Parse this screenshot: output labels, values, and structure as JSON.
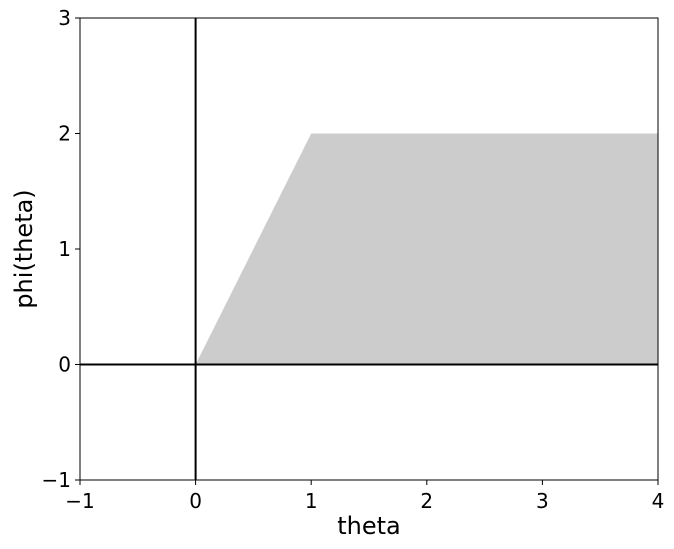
{
  "chart_data": {
    "type": "area",
    "title": "",
    "xlabel": "theta",
    "ylabel": "phi(theta)",
    "xlim": [
      -1,
      4
    ],
    "ylim": [
      -1,
      3
    ],
    "xticks": [
      -1,
      0,
      1,
      2,
      3,
      4
    ],
    "yticks": [
      -1,
      0,
      1,
      2,
      3
    ],
    "xtick_labels": [
      "−1",
      "0",
      "1",
      "2",
      "3",
      "4"
    ],
    "ytick_labels": [
      "−1",
      "0",
      "1",
      "2",
      "3"
    ],
    "grid": false,
    "legend": "none",
    "reference_lines": {
      "x": 0,
      "y": 0,
      "color": "#000000"
    },
    "series": [
      {
        "x": [
          0,
          1,
          4
        ],
        "y_lower": [
          0,
          0,
          0
        ],
        "y_upper": [
          0,
          2,
          2
        ],
        "color": "#cccccc"
      }
    ]
  }
}
